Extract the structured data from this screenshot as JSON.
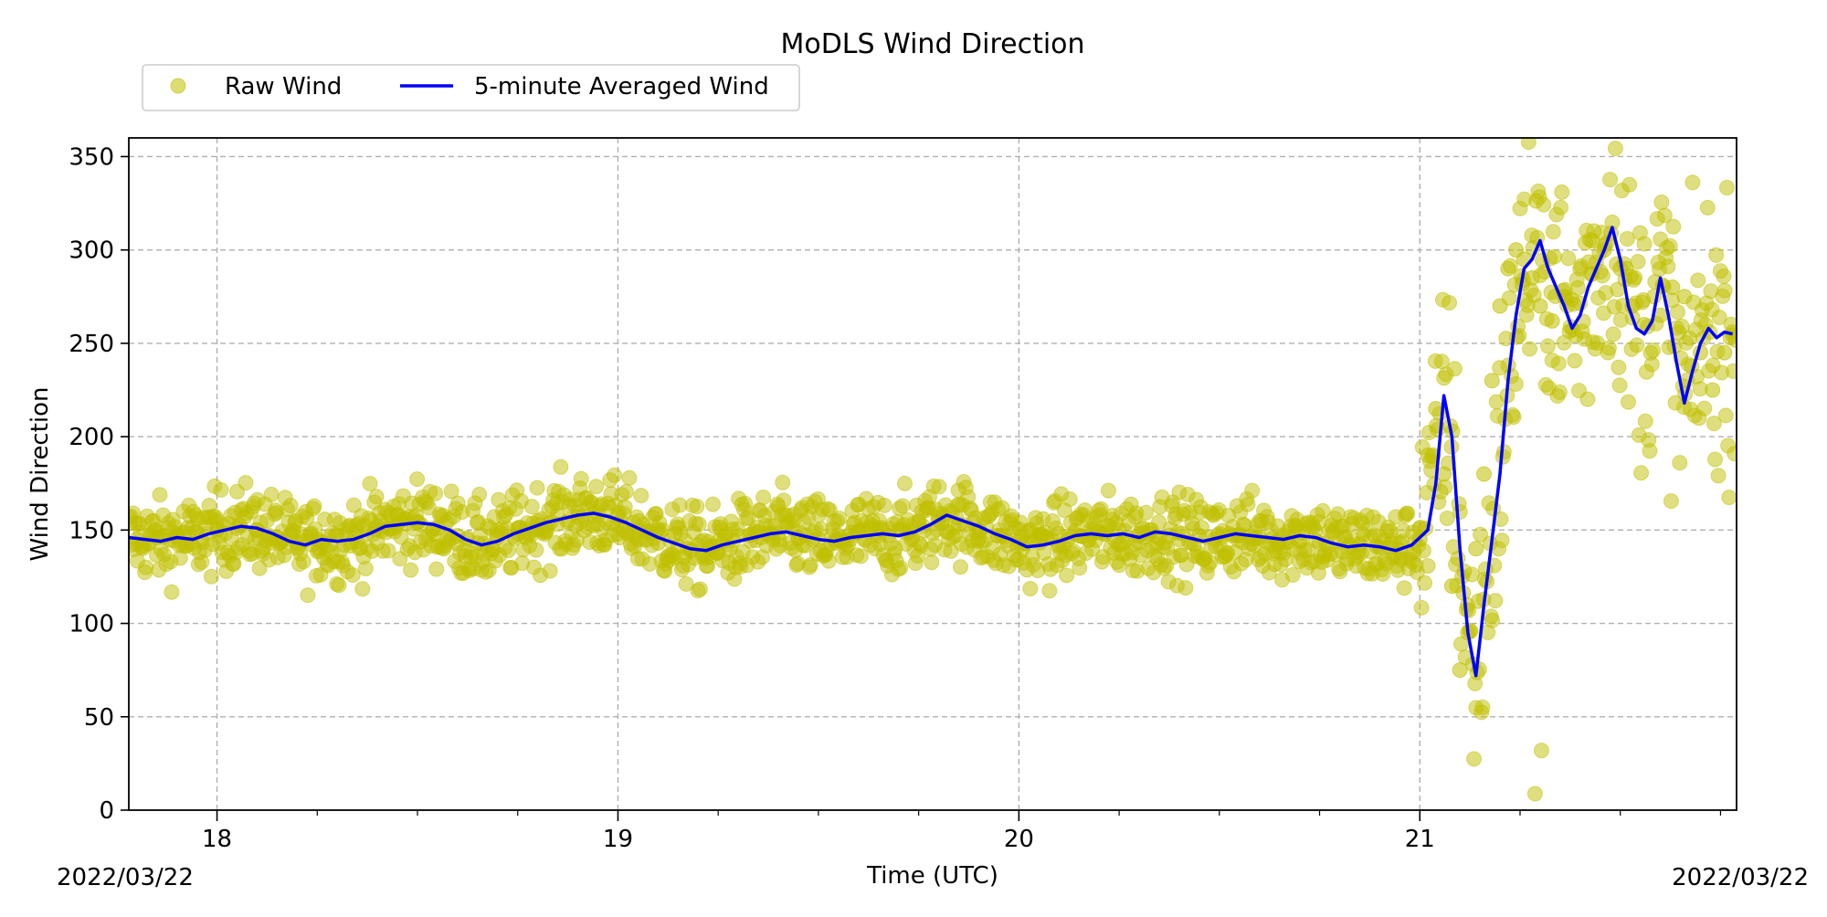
{
  "chart_data": {
    "type": "line",
    "title": "MoDLS Wind Direction",
    "xlabel": "Time (UTC)",
    "ylabel": "Wind Direction",
    "xlim": [
      17.78,
      21.79
    ],
    "ylim": [
      0,
      360
    ],
    "x_ticks": [
      18,
      19,
      20,
      21
    ],
    "x_tick_labels": [
      "18",
      "19",
      "20",
      "21"
    ],
    "y_ticks": [
      0,
      50,
      100,
      150,
      200,
      250,
      300,
      350
    ],
    "y_tick_labels": [
      "0",
      "50",
      "100",
      "150",
      "200",
      "250",
      "300",
      "350"
    ],
    "x_minor_step": 0.25,
    "date_left": "2022/03/22",
    "date_right": "2022/03/22",
    "grid": true,
    "legend_position": "above-left, two columns",
    "series": [
      {
        "name": "Raw Wind",
        "kind": "scatter",
        "color": "#bfbf00",
        "note_values": "dense scatter around the averaged wind; representative sampled points below",
        "x": [
          17.8,
          17.85,
          17.9,
          17.95,
          18.0,
          18.05,
          18.1,
          18.15,
          18.2,
          18.25,
          18.3,
          18.35,
          18.4,
          18.45,
          18.5,
          18.55,
          18.6,
          18.65,
          18.7,
          18.75,
          18.8,
          18.85,
          18.9,
          18.95,
          19.0,
          19.05,
          19.1,
          19.15,
          19.2,
          19.25,
          19.3,
          19.35,
          19.4,
          19.45,
          19.5,
          19.55,
          19.6,
          19.65,
          19.7,
          19.75,
          19.8,
          19.85,
          19.9,
          19.95,
          20.0,
          20.05,
          20.1,
          20.15,
          20.2,
          20.25,
          20.3,
          20.35,
          20.4,
          20.45,
          20.5,
          20.55,
          20.6,
          20.65,
          20.7,
          20.75,
          20.8,
          20.85,
          20.9,
          20.95,
          21.0,
          21.02,
          21.04,
          21.06,
          21.08,
          21.1,
          21.12,
          21.14,
          21.16,
          21.18,
          21.2,
          21.22,
          21.24,
          21.26,
          21.28,
          21.3,
          21.33,
          21.36,
          21.4,
          21.43,
          21.46,
          21.5,
          21.53,
          21.56,
          21.6,
          21.63,
          21.66,
          21.7,
          21.73,
          21.76,
          21.78
        ],
        "values": [
          145,
          146,
          147,
          149,
          150,
          151,
          150,
          146,
          143,
          145,
          147,
          150,
          152,
          153,
          154,
          151,
          147,
          143,
          146,
          151,
          155,
          158,
          157,
          153,
          148,
          145,
          143,
          141,
          142,
          144,
          147,
          149,
          148,
          146,
          145,
          147,
          149,
          147,
          150,
          155,
          157,
          153,
          150,
          147,
          144,
          146,
          148,
          147,
          149,
          150,
          148,
          146,
          145,
          147,
          148,
          147,
          146,
          145,
          144,
          143,
          144,
          142,
          141,
          143,
          145,
          190,
          215,
          180,
          120,
          75,
          95,
          140,
          180,
          230,
          270,
          290,
          300,
          295,
          285,
          270,
          262,
          275,
          290,
          305,
          300,
          290,
          270,
          260,
          265,
          280,
          275,
          245,
          225,
          245,
          256
        ]
      },
      {
        "name": "5-minute Averaged Wind",
        "kind": "line",
        "color": "#0000ff",
        "x": [
          17.78,
          17.82,
          17.86,
          17.9,
          17.94,
          17.98,
          18.02,
          18.06,
          18.1,
          18.14,
          18.18,
          18.22,
          18.26,
          18.3,
          18.34,
          18.38,
          18.42,
          18.46,
          18.5,
          18.54,
          18.58,
          18.62,
          18.66,
          18.7,
          18.74,
          18.78,
          18.82,
          18.86,
          18.9,
          18.94,
          18.98,
          19.02,
          19.06,
          19.1,
          19.14,
          19.18,
          19.22,
          19.26,
          19.3,
          19.34,
          19.38,
          19.42,
          19.46,
          19.5,
          19.54,
          19.58,
          19.62,
          19.66,
          19.7,
          19.74,
          19.78,
          19.82,
          19.86,
          19.9,
          19.94,
          19.98,
          20.02,
          20.06,
          20.1,
          20.14,
          20.18,
          20.22,
          20.26,
          20.3,
          20.34,
          20.38,
          20.42,
          20.46,
          20.5,
          20.54,
          20.58,
          20.62,
          20.66,
          20.7,
          20.74,
          20.78,
          20.82,
          20.86,
          20.9,
          20.94,
          20.98,
          21.0,
          21.02,
          21.04,
          21.06,
          21.08,
          21.1,
          21.12,
          21.14,
          21.16,
          21.18,
          21.2,
          21.22,
          21.24,
          21.26,
          21.28,
          21.3,
          21.32,
          21.34,
          21.36,
          21.38,
          21.4,
          21.42,
          21.44,
          21.46,
          21.48,
          21.5,
          21.52,
          21.54,
          21.56,
          21.58,
          21.6,
          21.62,
          21.64,
          21.66,
          21.68,
          21.7,
          21.72,
          21.74,
          21.76,
          21.78
        ],
        "values": [
          146,
          145,
          144,
          146,
          145,
          148,
          150,
          152,
          151,
          148,
          144,
          142,
          145,
          144,
          145,
          148,
          152,
          153,
          154,
          153,
          150,
          145,
          142,
          144,
          148,
          151,
          154,
          156,
          158,
          159,
          157,
          154,
          150,
          146,
          143,
          140,
          139,
          142,
          144,
          146,
          148,
          149,
          147,
          145,
          144,
          146,
          147,
          148,
          147,
          149,
          153,
          158,
          155,
          152,
          148,
          145,
          141,
          142,
          144,
          147,
          148,
          147,
          148,
          146,
          149,
          148,
          146,
          144,
          146,
          148,
          147,
          146,
          145,
          147,
          146,
          143,
          141,
          142,
          141,
          139,
          142,
          146,
          150,
          175,
          222,
          200,
          140,
          95,
          72,
          110,
          145,
          180,
          230,
          265,
          290,
          295,
          305,
          290,
          280,
          270,
          258,
          265,
          280,
          290,
          300,
          312,
          295,
          270,
          258,
          255,
          262,
          285,
          265,
          240,
          218,
          235,
          250,
          258,
          253,
          256,
          255
        ]
      }
    ]
  }
}
